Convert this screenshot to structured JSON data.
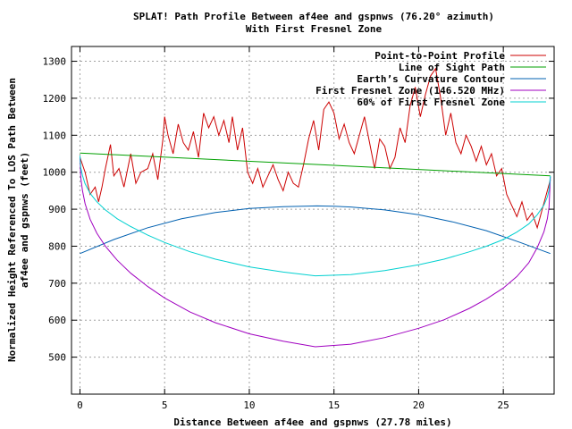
{
  "chart_data": {
    "type": "line",
    "title": "SPLAT! Path Profile Between af4ee and gspnws (76.20° azimuth)",
    "subtitle": "With First Fresnel Zone",
    "xlabel": "Distance Between af4ee and gspnws (27.78 miles)",
    "ylabel_line1": "Normalized Height Referenced To LOS Path Between",
    "ylabel_line2": "af4ee and gspnws (feet)",
    "xlim": [
      -0.5,
      28
    ],
    "ylim": [
      400,
      1340
    ],
    "x_ticks": [
      0,
      5,
      10,
      15,
      20,
      25
    ],
    "x_tick_labels": [
      "0",
      "5",
      "10",
      "15",
      "20",
      "25"
    ],
    "y_ticks": [
      500,
      600,
      700,
      800,
      900,
      1000,
      1100,
      1200,
      1300
    ],
    "y_tick_labels": [
      "500",
      "600",
      "700",
      "800",
      "900",
      "1000",
      "1100",
      "1200",
      "1300"
    ],
    "grid": true,
    "legend_position": "top-right",
    "path_length": 27.78,
    "series": [
      {
        "name": "Point-to-Point Profile",
        "color": "#cc0000",
        "x": [
          0,
          0.3,
          0.6,
          0.9,
          1.1,
          1.3,
          1.5,
          1.8,
          2.0,
          2.3,
          2.6,
          3.0,
          3.3,
          3.6,
          4.0,
          4.3,
          4.6,
          4.9,
          5.0,
          5.2,
          5.5,
          5.8,
          6.1,
          6.4,
          6.7,
          7.0,
          7.3,
          7.6,
          7.9,
          8.2,
          8.5,
          8.8,
          9.0,
          9.3,
          9.6,
          9.9,
          10.2,
          10.5,
          10.8,
          11.1,
          11.4,
          11.7,
          12.0,
          12.3,
          12.6,
          12.9,
          13.2,
          13.5,
          13.8,
          14.1,
          14.4,
          14.7,
          15.0,
          15.3,
          15.6,
          15.9,
          16.2,
          16.5,
          16.8,
          17.1,
          17.4,
          17.7,
          18.0,
          18.3,
          18.6,
          18.9,
          19.2,
          19.5,
          19.8,
          20.1,
          20.4,
          20.7,
          21.0,
          21.3,
          21.6,
          21.9,
          22.2,
          22.5,
          22.8,
          23.1,
          23.4,
          23.7,
          24.0,
          24.3,
          24.6,
          24.9,
          25.2,
          25.5,
          25.8,
          26.1,
          26.4,
          26.7,
          27.0,
          27.3,
          27.6,
          27.78
        ],
        "y": [
          1040,
          1000,
          940,
          960,
          920,
          960,
          1010,
          1075,
          990,
          1010,
          960,
          1050,
          970,
          1000,
          1010,
          1050,
          980,
          1090,
          1150,
          1100,
          1050,
          1130,
          1080,
          1060,
          1110,
          1040,
          1160,
          1120,
          1150,
          1100,
          1140,
          1080,
          1150,
          1060,
          1120,
          1000,
          970,
          1010,
          960,
          990,
          1020,
          980,
          950,
          1000,
          970,
          960,
          1020,
          1090,
          1140,
          1060,
          1170,
          1190,
          1160,
          1090,
          1130,
          1080,
          1050,
          1100,
          1150,
          1080,
          1010,
          1090,
          1070,
          1010,
          1040,
          1120,
          1080,
          1180,
          1230,
          1150,
          1210,
          1260,
          1280,
          1200,
          1100,
          1160,
          1080,
          1050,
          1100,
          1070,
          1030,
          1070,
          1020,
          1050,
          990,
          1010,
          940,
          910,
          880,
          920,
          870,
          890,
          850,
          900,
          950,
          980
        ]
      },
      {
        "name": "Line of Sight Path",
        "color": "#00a000",
        "x": [
          0,
          27.78
        ],
        "y": [
          1052,
          990
        ]
      },
      {
        "name": "Earth’s Curvature Contour",
        "color": "#0060b0",
        "x": [
          0,
          2,
          4,
          6,
          8,
          10,
          12,
          14,
          15,
          16,
          18,
          20,
          22,
          24,
          26,
          27.78
        ],
        "y": [
          780,
          818,
          850,
          874,
          891,
          902,
          907,
          909,
          908,
          906,
          898,
          885,
          866,
          842,
          810,
          780
        ]
      },
      {
        "name": "First Fresnel Zone (146.520 MHz)",
        "color": "#a000c0",
        "x": [
          0,
          0.05,
          0.15,
          0.3,
          0.6,
          1.0,
          1.5,
          2.2,
          3.0,
          4.0,
          5.0,
          6.5,
          8.0,
          10.0,
          12.0,
          13.89,
          16.0,
          18.0,
          20.0,
          21.5,
          23.0,
          24.0,
          25.0,
          25.8,
          26.5,
          27.0,
          27.4,
          27.6,
          27.7,
          27.78
        ],
        "y": [
          1040,
          985,
          950,
          915,
          873,
          835,
          800,
          762,
          727,
          691,
          660,
          622,
          593,
          563,
          543,
          528,
          535,
          553,
          578,
          601,
          632,
          657,
          687,
          718,
          755,
          796,
          839,
          874,
          905,
          988
        ]
      },
      {
        "name": "60% of First Fresnel Zone",
        "color": "#00d0d0",
        "x": [
          0,
          0.05,
          0.15,
          0.3,
          0.6,
          1.0,
          1.5,
          2.2,
          3.0,
          4.0,
          5.0,
          6.5,
          8.0,
          10.0,
          12.0,
          13.89,
          16.0,
          18.0,
          20.0,
          21.5,
          23.0,
          24.0,
          25.0,
          25.8,
          26.5,
          27.0,
          27.4,
          27.6,
          27.7,
          27.78
        ],
        "y": [
          1045,
          1012,
          991,
          969,
          943,
          920,
          898,
          874,
          853,
          830,
          810,
          785,
          765,
          744,
          730,
          720,
          723,
          734,
          750,
          765,
          785,
          800,
          818,
          838,
          860,
          885,
          911,
          933,
          952,
          990
        ]
      }
    ]
  }
}
